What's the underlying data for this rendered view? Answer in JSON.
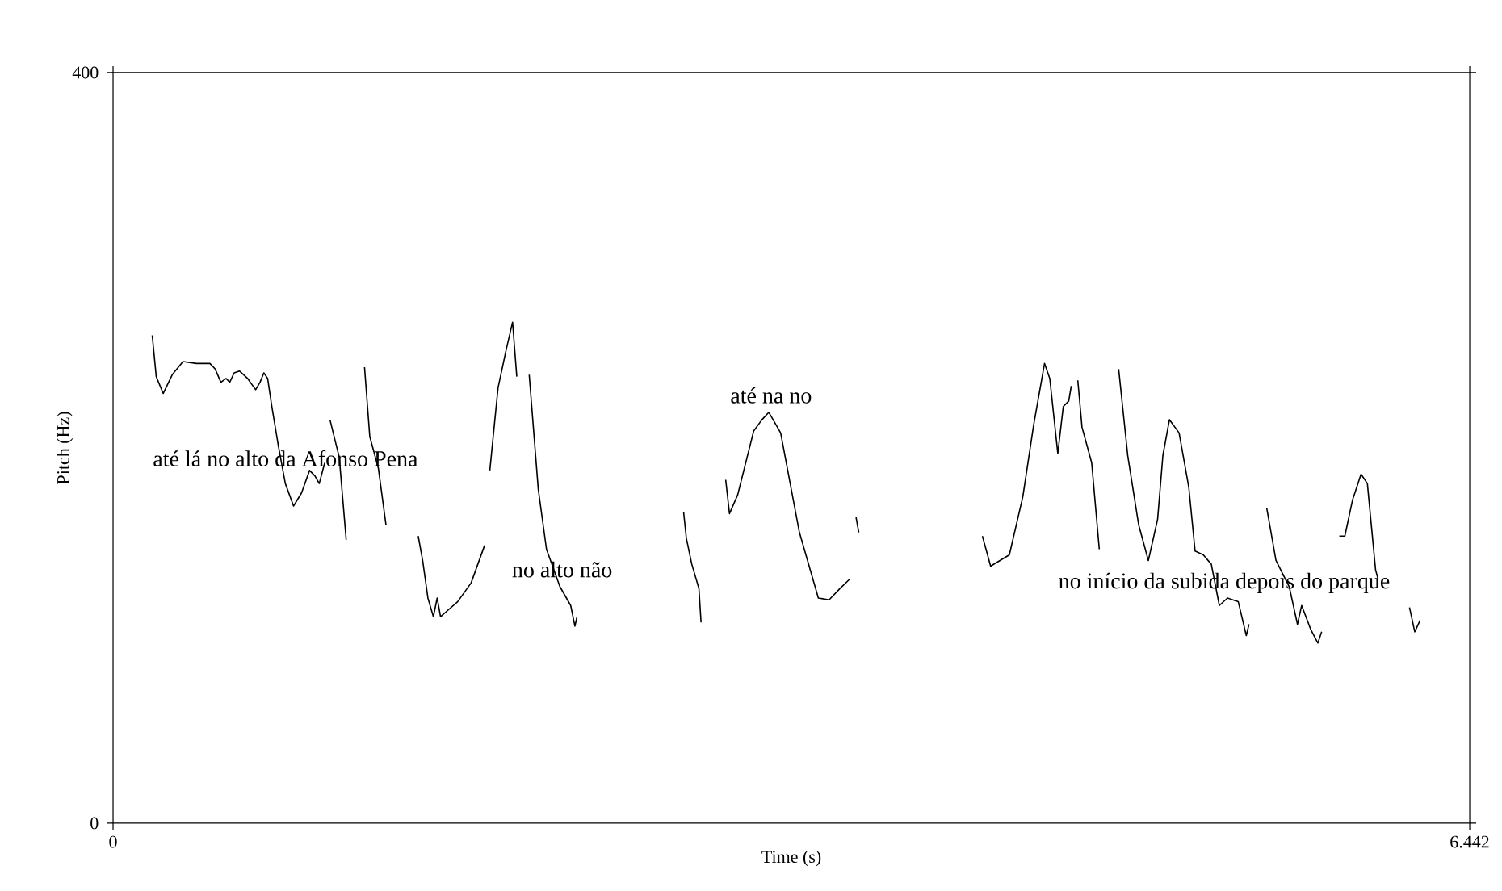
{
  "chart_data": {
    "type": "line",
    "xlabel": "Time (s)",
    "ylabel": "Pitch (Hz)",
    "xlim": [
      0,
      6.442
    ],
    "ylim": [
      0,
      400
    ],
    "xticks": [
      0,
      6.442
    ],
    "yticks": [
      0,
      400
    ],
    "marker": "none",
    "line_style": "solid",
    "annotations": [
      "até lá no alto da Afonso Pena",
      "no alto não",
      "até na no",
      "no início da subida depois do parque"
    ],
    "series": [
      {
        "color": "#000000",
        "x": [
          0.186,
          0.205,
          0.238,
          0.281,
          0.332,
          0.396,
          0.46,
          0.485,
          0.512,
          0.537,
          0.554,
          0.575,
          0.6,
          0.639,
          0.677,
          0.698,
          0.716,
          0.734,
          0.754,
          0.785,
          0.818,
          0.857,
          0.895,
          0.933,
          0.959,
          0.979,
          1.005
        ],
        "values": [
          260,
          238,
          229,
          239,
          246,
          245,
          245,
          242,
          235,
          237,
          235,
          240,
          241,
          237,
          231,
          235,
          240,
          237,
          222,
          201,
          181,
          169,
          176,
          188,
          185,
          181,
          192
        ]
      },
      {
        "color": "#000000",
        "x": [
          1.03,
          1.074,
          1.107
        ],
        "values": [
          215,
          195,
          151
        ]
      },
      {
        "color": "#000000",
        "x": [
          1.194,
          1.219,
          1.26,
          1.296
        ],
        "values": [
          243,
          206,
          189,
          159
        ]
      },
      {
        "color": "#000000",
        "x": [
          1.449,
          1.47,
          1.495,
          1.521,
          1.539,
          1.555,
          1.585,
          1.636,
          1.7,
          1.764
        ],
        "values": [
          153,
          140,
          120,
          110,
          120,
          110,
          113,
          118,
          128,
          148
        ]
      },
      {
        "color": "#000000",
        "x": [
          1.789,
          1.828,
          1.866,
          1.897,
          1.917
        ],
        "values": [
          188,
          232,
          252,
          267,
          238
        ]
      },
      {
        "color": "#000000",
        "x": [
          1.976,
          2.019,
          2.058,
          2.122,
          2.173,
          2.193,
          2.203
        ],
        "values": [
          239,
          178,
          146,
          126,
          116,
          105,
          110
        ]
      },
      {
        "color": "#000000",
        "x": [
          2.709,
          2.722,
          2.748,
          2.782,
          2.792
        ],
        "values": [
          166,
          152,
          138,
          125,
          107
        ]
      },
      {
        "color": "#000000",
        "x": [
          2.909,
          2.927,
          2.966,
          3.042,
          3.081,
          3.114,
          3.17,
          3.259,
          3.349,
          3.4,
          3.451,
          3.497
        ],
        "values": [
          183,
          165,
          175,
          209,
          215,
          219,
          208,
          155,
          120,
          119,
          125,
          130
        ]
      },
      {
        "color": "#000000",
        "x": [
          3.528,
          3.541
        ],
        "values": [
          163,
          155
        ]
      },
      {
        "color": "#000000",
        "x": [
          4.128,
          4.167,
          4.256,
          4.32,
          4.371,
          4.423,
          4.448,
          4.486,
          4.512,
          4.538,
          4.55
        ],
        "values": [
          153,
          137,
          143,
          174,
          212,
          245,
          237,
          197,
          222,
          225,
          233
        ]
      },
      {
        "color": "#000000",
        "x": [
          4.581,
          4.601,
          4.647,
          4.683
        ],
        "values": [
          236,
          211,
          192,
          146
        ]
      },
      {
        "color": "#000000",
        "x": [
          4.775,
          4.818,
          4.87,
          4.916,
          4.96,
          4.985,
          5.016,
          5.062,
          5.108,
          5.138,
          5.177,
          5.215,
          5.253,
          5.292,
          5.343,
          5.381,
          5.394
        ],
        "values": [
          242,
          196,
          159,
          140,
          162,
          196,
          215,
          208,
          179,
          145,
          143,
          138,
          116,
          120,
          118,
          100,
          106
        ]
      },
      {
        "color": "#000000",
        "x": [
          5.478,
          5.522,
          5.585,
          5.624,
          5.644,
          5.688,
          5.721,
          5.739
        ],
        "values": [
          168,
          140,
          126,
          106,
          116,
          103,
          96,
          102
        ]
      },
      {
        "color": "#000000",
        "x": [
          5.823,
          5.849,
          5.885,
          5.926,
          5.956,
          5.995,
          6.007
        ],
        "values": [
          153,
          153,
          172,
          186,
          181,
          135,
          130
        ]
      },
      {
        "color": "#000000",
        "x": [
          6.156,
          6.181,
          6.206
        ],
        "values": [
          115,
          102,
          108
        ]
      }
    ]
  }
}
